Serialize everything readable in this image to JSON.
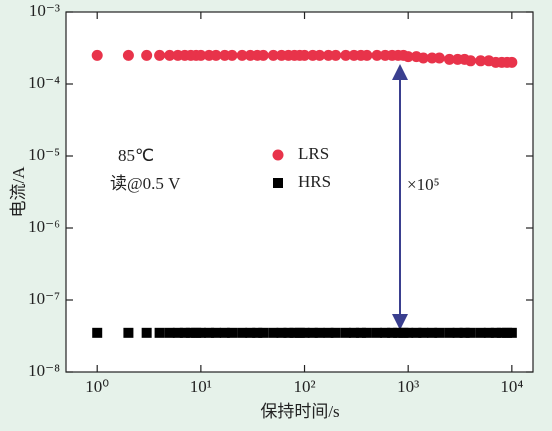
{
  "chart_data": {
    "type": "scatter",
    "xlabel": "保持时间/s",
    "ylabel": "电流/A",
    "annotations": [
      "85℃",
      "读@0.5 V",
      "×10⁵"
    ],
    "log_x": true,
    "log_y": true,
    "xlim": [
      0.5,
      16000
    ],
    "ylim": [
      1e-08,
      0.001
    ],
    "xticks": [
      {
        "value": 1,
        "label": "10⁰"
      },
      {
        "value": 10,
        "label": "10¹"
      },
      {
        "value": 100,
        "label": "10²"
      },
      {
        "value": 1000,
        "label": "10³"
      },
      {
        "value": 10000,
        "label": "10⁴"
      }
    ],
    "yticks": [
      {
        "value": 1e-08,
        "label": "10⁻⁸"
      },
      {
        "value": 1e-07,
        "label": "10⁻⁷"
      },
      {
        "value": 1e-06,
        "label": "10⁻⁶"
      },
      {
        "value": 1e-05,
        "label": "10⁻⁵"
      },
      {
        "value": 0.0001,
        "label": "10⁻⁴"
      },
      {
        "value": 0.001,
        "label": "10⁻³"
      }
    ],
    "x": [
      1,
      2,
      3,
      4,
      5,
      6,
      7,
      8,
      9,
      10,
      12,
      14,
      17,
      20,
      25,
      30,
      35,
      40,
      50,
      60,
      70,
      80,
      90,
      100,
      120,
      140,
      170,
      200,
      250,
      300,
      350,
      400,
      500,
      600,
      700,
      800,
      900,
      1000,
      1200,
      1400,
      1700,
      2000,
      2500,
      3000,
      3500,
      4000,
      5000,
      6000,
      7000,
      8000,
      9000,
      10000
    ],
    "series": [
      {
        "name": "LRS",
        "color": "#e8334a",
        "marker": "circle",
        "values": [
          0.00025,
          0.00025,
          0.00025,
          0.00025,
          0.00025,
          0.00025,
          0.00025,
          0.00025,
          0.00025,
          0.00025,
          0.00025,
          0.00025,
          0.00025,
          0.00025,
          0.00025,
          0.00025,
          0.00025,
          0.00025,
          0.00025,
          0.00025,
          0.00025,
          0.00025,
          0.00025,
          0.00025,
          0.00025,
          0.00025,
          0.00025,
          0.00025,
          0.00025,
          0.00025,
          0.00025,
          0.00025,
          0.00025,
          0.00025,
          0.00025,
          0.00025,
          0.00025,
          0.00024,
          0.00024,
          0.00023,
          0.00023,
          0.00023,
          0.00022,
          0.00022,
          0.00022,
          0.00021,
          0.00021,
          0.00021,
          0.0002,
          0.0002,
          0.0002,
          0.0002
        ]
      },
      {
        "name": "HRS",
        "color": "#000000",
        "marker": "square",
        "values": [
          3.5e-08,
          3.5e-08,
          3.5e-08,
          3.5e-08,
          3.5e-08,
          3.5e-08,
          3.5e-08,
          3.5e-08,
          3.5e-08,
          3.5e-08,
          3.5e-08,
          3.5e-08,
          3.5e-08,
          3.5e-08,
          3.5e-08,
          3.5e-08,
          3.5e-08,
          3.5e-08,
          3.5e-08,
          3.5e-08,
          3.5e-08,
          3.5e-08,
          3.5e-08,
          3.5e-08,
          3.5e-08,
          3.5e-08,
          3.5e-08,
          3.5e-08,
          3.5e-08,
          3.5e-08,
          3.5e-08,
          3.5e-08,
          3.5e-08,
          3.5e-08,
          3.5e-08,
          3.5e-08,
          3.5e-08,
          3.5e-08,
          3.5e-08,
          3.5e-08,
          3.5e-08,
          3.5e-08,
          3.5e-08,
          3.5e-08,
          3.5e-08,
          3.5e-08,
          3.5e-08,
          3.5e-08,
          3.5e-08,
          3.5e-08,
          3.5e-08,
          3.5e-08
        ]
      }
    ]
  }
}
